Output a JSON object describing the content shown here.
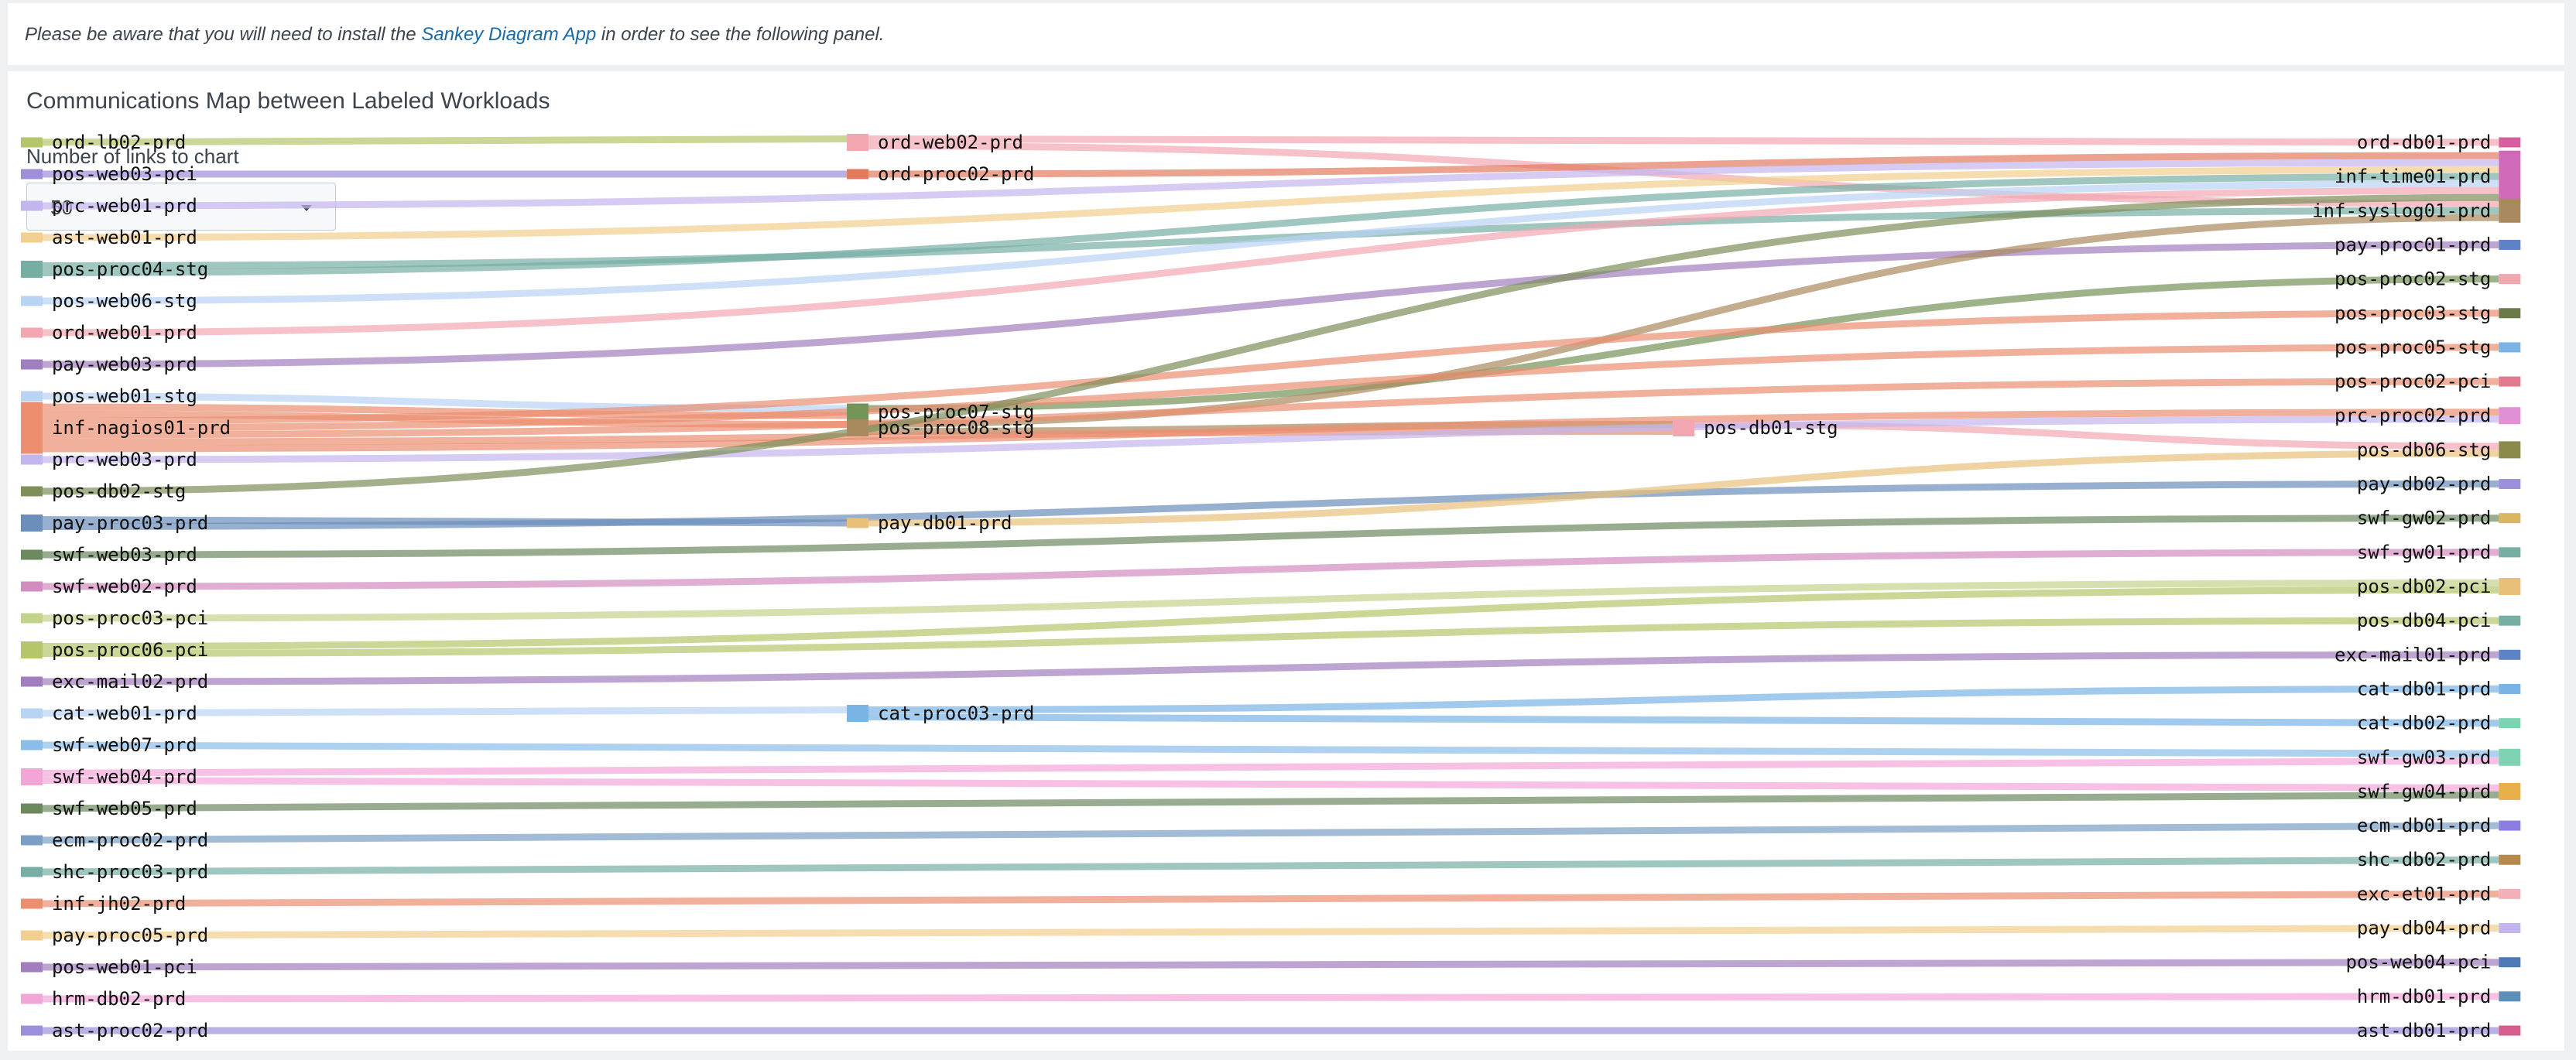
{
  "notice": {
    "prefix": "Please be aware that you will need to install the ",
    "link": "Sankey Diagram App",
    "suffix": " in order to see the following panel."
  },
  "panel": {
    "title": "Communications Map between Labeled Workloads",
    "links_label": "Number of links to chart",
    "links_value": "50"
  },
  "chart_data": {
    "type": "sankey",
    "nodes": [
      {
        "name": "ord-lb02-prd",
        "color": "#b5c66a"
      },
      {
        "name": "pos-web03-pci",
        "color": "#9d8fda"
      },
      {
        "name": "prc-web01-prd",
        "color": "#c3b5ee"
      },
      {
        "name": "ast-web01-prd",
        "color": "#f1cf8e"
      },
      {
        "name": "pos-proc04-stg",
        "color": "#76aea4"
      },
      {
        "name": "pos-web06-stg",
        "color": "#b9d3f4"
      },
      {
        "name": "ord-web01-prd",
        "color": "#f2a6b0"
      },
      {
        "name": "pay-web03-prd",
        "color": "#a17ebd"
      },
      {
        "name": "pos-web01-stg",
        "color": "#b9d3f4"
      },
      {
        "name": "inf-nagios01-prd",
        "color": "#eb8f70"
      },
      {
        "name": "prc-web03-prd",
        "color": "#c3b5ee"
      },
      {
        "name": "pos-db02-stg",
        "color": "#7e8f5a"
      },
      {
        "name": "pay-proc03-prd",
        "color": "#6b8fba"
      },
      {
        "name": "swf-web03-prd",
        "color": "#6c8a5f"
      },
      {
        "name": "swf-web02-prd",
        "color": "#d38cc0"
      },
      {
        "name": "pos-proc03-pci",
        "color": "#c3d38c"
      },
      {
        "name": "pos-proc06-pci",
        "color": "#b5c66a"
      },
      {
        "name": "exc-mail02-prd",
        "color": "#a17ebd"
      },
      {
        "name": "cat-web01-prd",
        "color": "#b9d3f4"
      },
      {
        "name": "swf-web07-prd",
        "color": "#8cbdea"
      },
      {
        "name": "swf-web04-prd",
        "color": "#f2a6d8"
      },
      {
        "name": "swf-web05-prd",
        "color": "#6c8a5f"
      },
      {
        "name": "ecm-proc02-prd",
        "color": "#7b9fc4"
      },
      {
        "name": "shc-proc03-prd",
        "color": "#76aea4"
      },
      {
        "name": "inf-jh02-prd",
        "color": "#eb8f70"
      },
      {
        "name": "pay-proc05-prd",
        "color": "#f1cf8e"
      },
      {
        "name": "pos-web01-pci",
        "color": "#a17ebd"
      },
      {
        "name": "hrm-db02-prd",
        "color": "#f2a6d8"
      },
      {
        "name": "ast-proc02-prd",
        "color": "#9d8fda"
      },
      {
        "name": "ord-web02-prd",
        "color": "#f2a6b0"
      },
      {
        "name": "pos-proc07-stg",
        "color": "#76935a"
      },
      {
        "name": "pos-proc08-stg",
        "color": "#a98a5e"
      },
      {
        "name": "pay-db01-prd",
        "color": "#e8c07a"
      },
      {
        "name": "cat-proc03-prd",
        "color": "#7ab4e4"
      },
      {
        "name": "ord-proc02-prd",
        "color": "#e27a5e"
      },
      {
        "name": "pos-db01-stg",
        "color": "#f2a6b0"
      },
      {
        "name": "ord-db01-prd",
        "color": "#d65ea0"
      },
      {
        "name": "inf-time01-prd",
        "color": "#d06ab8"
      },
      {
        "name": "inf-syslog01-prd",
        "color": "#a98a5e"
      },
      {
        "name": "pay-proc01-prd",
        "color": "#5e83c4"
      },
      {
        "name": "pos-proc02-stg",
        "color": "#f2a6b0"
      },
      {
        "name": "pos-proc03-stg",
        "color": "#6c7a4a"
      },
      {
        "name": "pos-proc05-stg",
        "color": "#7ab4e4"
      },
      {
        "name": "pos-proc02-pci",
        "color": "#e27a8e"
      },
      {
        "name": "prc-proc02-prd",
        "color": "#e290d6"
      },
      {
        "name": "pos-db06-stg",
        "color": "#8a8a4a"
      },
      {
        "name": "pay-db02-prd",
        "color": "#9d8fda"
      },
      {
        "name": "swf-gw02-prd",
        "color": "#d9b760"
      },
      {
        "name": "swf-gw01-prd",
        "color": "#76aea4"
      },
      {
        "name": "pos-db02-pci",
        "color": "#e8c07a"
      },
      {
        "name": "pos-db04-pci",
        "color": "#76aea4"
      },
      {
        "name": "exc-mail01-prd",
        "color": "#5e83c4"
      },
      {
        "name": "cat-db01-prd",
        "color": "#7ab4e4"
      },
      {
        "name": "cat-db02-prd",
        "color": "#7ed3b2"
      },
      {
        "name": "swf-gw03-prd",
        "color": "#7ed3b2"
      },
      {
        "name": "swf-gw04-prd",
        "color": "#e8b04a"
      },
      {
        "name": "ecm-db01-prd",
        "color": "#8a7ee0"
      },
      {
        "name": "shc-db02-prd",
        "color": "#b58a4a"
      },
      {
        "name": "exc-et01-prd",
        "color": "#f2b0b8"
      },
      {
        "name": "pay-db04-prd",
        "color": "#c3b5ee"
      },
      {
        "name": "pos-web04-pci",
        "color": "#4e79b8"
      },
      {
        "name": "hrm-db01-prd",
        "color": "#5e8fb8"
      },
      {
        "name": "ast-db01-prd",
        "color": "#d65e8e"
      }
    ],
    "links": [
      {
        "source": "ord-lb02-prd",
        "target": "ord-web02-prd",
        "value": 1
      },
      {
        "source": "ord-web02-prd",
        "target": "ord-db01-prd",
        "value": 1
      },
      {
        "source": "ord-web02-prd",
        "target": "inf-syslog01-prd",
        "value": 1
      },
      {
        "source": "pos-web03-pci",
        "target": "ord-proc02-prd",
        "value": 1
      },
      {
        "source": "ord-proc02-prd",
        "target": "inf-time01-prd",
        "value": 1
      },
      {
        "source": "prc-web01-prd",
        "target": "inf-time01-prd",
        "value": 1
      },
      {
        "source": "ast-web01-prd",
        "target": "inf-time01-prd",
        "value": 1
      },
      {
        "source": "pos-proc04-stg",
        "target": "inf-syslog01-prd",
        "value": 1
      },
      {
        "source": "pos-proc04-stg",
        "target": "inf-time01-prd",
        "value": 1
      },
      {
        "source": "pos-web06-stg",
        "target": "inf-time01-prd",
        "value": 1
      },
      {
        "source": "ord-web01-prd",
        "target": "inf-time01-prd",
        "value": 1
      },
      {
        "source": "pay-web03-prd",
        "target": "pay-proc01-prd",
        "value": 1
      },
      {
        "source": "pos-web01-stg",
        "target": "pos-proc07-stg",
        "value": 1
      },
      {
        "source": "pos-proc07-stg",
        "target": "pos-proc02-stg",
        "value": 1
      },
      {
        "source": "inf-nagios01-prd",
        "target": "pos-proc07-stg",
        "value": 1
      },
      {
        "source": "inf-nagios01-prd",
        "target": "pos-proc08-stg",
        "value": 1
      },
      {
        "source": "pos-proc08-stg",
        "target": "inf-syslog01-prd",
        "value": 1
      },
      {
        "source": "pos-proc08-stg",
        "target": "pos-db01-stg",
        "value": 1
      },
      {
        "source": "inf-nagios01-prd",
        "target": "pos-proc03-stg",
        "value": 1
      },
      {
        "source": "inf-nagios01-prd",
        "target": "pos-proc05-stg",
        "value": 1
      },
      {
        "source": "inf-nagios01-prd",
        "target": "pos-proc02-pci",
        "value": 1
      },
      {
        "source": "inf-nagios01-prd",
        "target": "pos-db01-stg",
        "value": 1
      },
      {
        "source": "inf-nagios01-prd",
        "target": "prc-proc02-prd",
        "value": 1
      },
      {
        "source": "pos-db01-stg",
        "target": "pos-db06-stg",
        "value": 1
      },
      {
        "source": "prc-web03-prd",
        "target": "prc-proc02-prd",
        "value": 1
      },
      {
        "source": "pos-db02-stg",
        "target": "inf-time01-prd",
        "value": 1
      },
      {
        "source": "pay-proc03-prd",
        "target": "pay-db01-prd",
        "value": 1
      },
      {
        "source": "pay-proc03-prd",
        "target": "pay-db02-prd",
        "value": 1
      },
      {
        "source": "pay-db01-prd",
        "target": "pos-db06-stg",
        "value": 1
      },
      {
        "source": "swf-web03-prd",
        "target": "swf-gw02-prd",
        "value": 1
      },
      {
        "source": "swf-web02-prd",
        "target": "swf-gw01-prd",
        "value": 1
      },
      {
        "source": "pos-proc03-pci",
        "target": "pos-db02-pci",
        "value": 1
      },
      {
        "source": "pos-proc06-pci",
        "target": "pos-db02-pci",
        "value": 1
      },
      {
        "source": "pos-proc06-pci",
        "target": "pos-db04-pci",
        "value": 1
      },
      {
        "source": "exc-mail02-prd",
        "target": "exc-mail01-prd",
        "value": 1
      },
      {
        "source": "cat-web01-prd",
        "target": "cat-proc03-prd",
        "value": 1
      },
      {
        "source": "cat-proc03-prd",
        "target": "cat-db01-prd",
        "value": 1
      },
      {
        "source": "cat-proc03-prd",
        "target": "cat-db02-prd",
        "value": 1
      },
      {
        "source": "swf-web07-prd",
        "target": "swf-gw03-prd",
        "value": 1
      },
      {
        "source": "swf-web04-prd",
        "target": "swf-gw03-prd",
        "value": 1
      },
      {
        "source": "swf-web04-prd",
        "target": "swf-gw04-prd",
        "value": 1
      },
      {
        "source": "swf-web05-prd",
        "target": "swf-gw04-prd",
        "value": 1
      },
      {
        "source": "ecm-proc02-prd",
        "target": "ecm-db01-prd",
        "value": 1
      },
      {
        "source": "shc-proc03-prd",
        "target": "shc-db02-prd",
        "value": 1
      },
      {
        "source": "inf-jh02-prd",
        "target": "exc-et01-prd",
        "value": 1
      },
      {
        "source": "pay-proc05-prd",
        "target": "pay-db04-prd",
        "value": 1
      },
      {
        "source": "pos-web01-pci",
        "target": "pos-web04-pci",
        "value": 1
      },
      {
        "source": "hrm-db02-prd",
        "target": "hrm-db01-prd",
        "value": 1
      },
      {
        "source": "ast-proc02-prd",
        "target": "ast-db01-prd",
        "value": 1
      }
    ]
  }
}
